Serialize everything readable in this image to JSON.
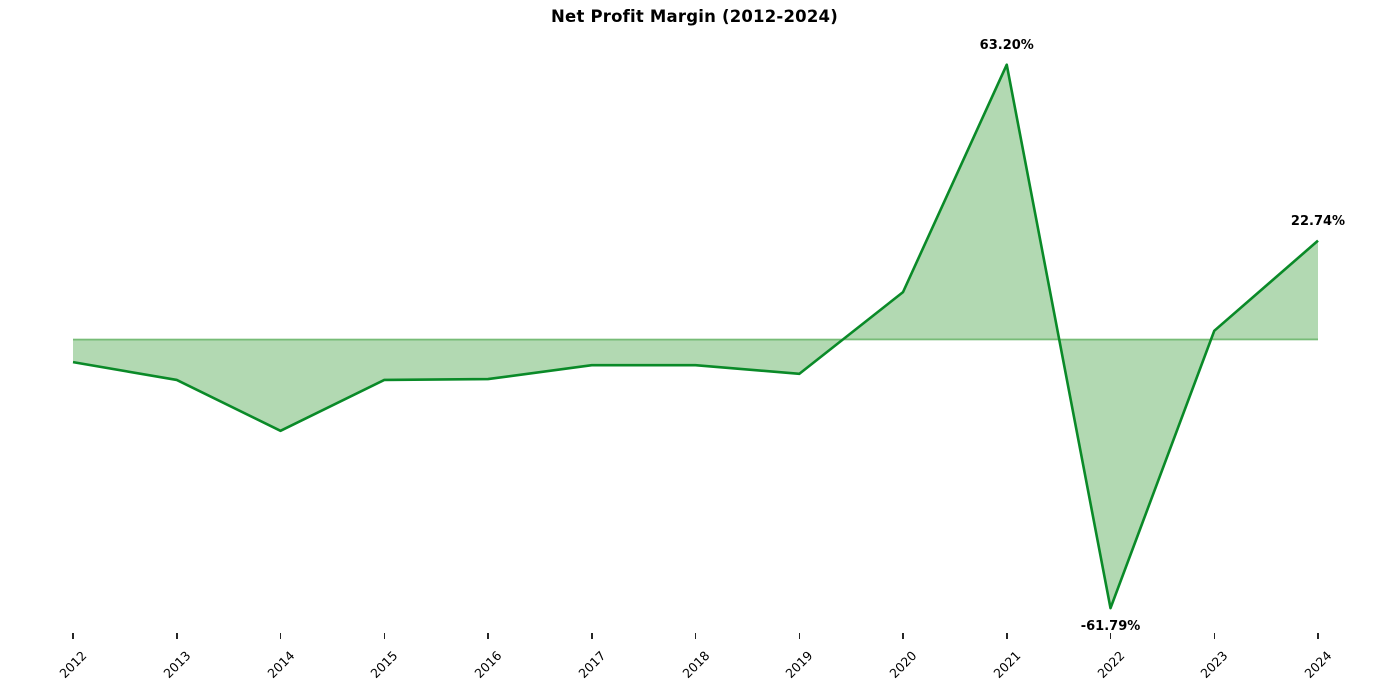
{
  "title": "Net Profit Margin (2012-2024)",
  "chart_data": {
    "type": "area",
    "title": "Net Profit Margin (2012-2024)",
    "categories": [
      "2012",
      "2013",
      "2014",
      "2015",
      "2016",
      "2017",
      "2018",
      "2019",
      "2020",
      "2021",
      "2022",
      "2023",
      "2024"
    ],
    "series": [
      {
        "name": "Net Profit Margin",
        "values": [
          -5.2,
          -9.3,
          -21.0,
          -9.3,
          -9.1,
          -5.9,
          -5.9,
          -7.9,
          10.9,
          63.2,
          -61.79,
          2.0,
          22.74
        ]
      }
    ],
    "unit": "%",
    "baseline": 0,
    "ylim": [
      -70,
      68
    ],
    "xlabel": "",
    "ylabel": "",
    "grid": false,
    "legend": false,
    "x_tick_rotation": 45,
    "point_labels": [
      {
        "index": 9,
        "text": "63.20%",
        "placement": "above"
      },
      {
        "index": 10,
        "text": "-61.79%",
        "placement": "below"
      },
      {
        "index": 12,
        "text": "22.74%",
        "placement": "above"
      }
    ],
    "colors": {
      "line": "#0a8a28",
      "fill": "rgba(0,128,0,0.30)",
      "baseline_edge": "rgba(0,128,0,0.45)",
      "tick": "#262626",
      "text": "#000000"
    }
  }
}
